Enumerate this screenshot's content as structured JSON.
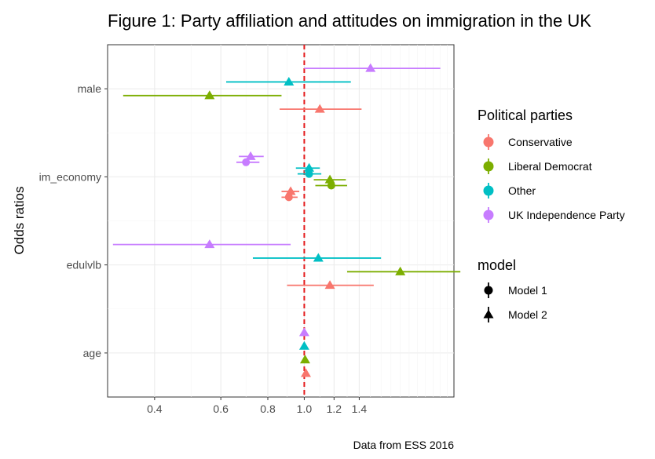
{
  "chart_data": {
    "type": "forest-plot",
    "title": "Figure 1: Party affiliation and attitudes on immigration in the UK",
    "ylabel": "Odds ratios",
    "xlabel": "",
    "caption": "Data from ESS 2016",
    "x_scale": "log",
    "xlim": [
      0.3,
      2.5
    ],
    "x_ticks": [
      0.4,
      0.6,
      0.8,
      1.0,
      1.2,
      1.4
    ],
    "x_tick_labels": [
      "0.4",
      "0.6",
      "0.8",
      "1.0",
      "1.2",
      "1.4"
    ],
    "reference_line": 1.0,
    "reference_color": "#e41a1c",
    "categories": [
      "male",
      "im_economy",
      "edulvlb",
      "age"
    ],
    "parties": [
      {
        "name": "Conservative",
        "color": "#F8766D"
      },
      {
        "name": "Liberal Democrat",
        "color": "#7CAE00"
      },
      {
        "name": "Other",
        "color": "#00BFC4"
      },
      {
        "name": "UK Independence Party",
        "color": "#C77CFF"
      }
    ],
    "models": [
      {
        "name": "Model 1",
        "shape": "circle"
      },
      {
        "name": "Model 2",
        "shape": "triangle"
      }
    ],
    "legend_title_color": "Political parties",
    "legend_title_shape": "model",
    "grid": true,
    "points": [
      {
        "var": "male",
        "party": "UK Independence Party",
        "model": "Model 2",
        "est": 1.5,
        "lo": 1.0,
        "hi": 2.3
      },
      {
        "var": "male",
        "party": "Other",
        "model": "Model 2",
        "est": 0.91,
        "lo": 0.62,
        "hi": 1.33
      },
      {
        "var": "male",
        "party": "Liberal Democrat",
        "model": "Model 2",
        "est": 0.56,
        "lo": 0.33,
        "hi": 0.87
      },
      {
        "var": "male",
        "party": "Conservative",
        "model": "Model 2",
        "est": 1.1,
        "lo": 0.86,
        "hi": 1.42
      },
      {
        "var": "im_economy",
        "party": "UK Independence Party",
        "model": "Model 2",
        "est": 0.72,
        "lo": 0.67,
        "hi": 0.78
      },
      {
        "var": "im_economy",
        "party": "UK Independence Party",
        "model": "Model 1",
        "est": 0.7,
        "lo": 0.66,
        "hi": 0.76
      },
      {
        "var": "im_economy",
        "party": "Other",
        "model": "Model 2",
        "est": 1.03,
        "lo": 0.95,
        "hi": 1.1
      },
      {
        "var": "im_economy",
        "party": "Other",
        "model": "Model 1",
        "est": 1.03,
        "lo": 0.96,
        "hi": 1.11
      },
      {
        "var": "im_economy",
        "party": "Liberal Democrat",
        "model": "Model 2",
        "est": 1.17,
        "lo": 1.06,
        "hi": 1.29
      },
      {
        "var": "im_economy",
        "party": "Liberal Democrat",
        "model": "Model 1",
        "est": 1.18,
        "lo": 1.07,
        "hi": 1.3
      },
      {
        "var": "im_economy",
        "party": "Conservative",
        "model": "Model 2",
        "est": 0.92,
        "lo": 0.87,
        "hi": 0.97
      },
      {
        "var": "im_economy",
        "party": "Conservative",
        "model": "Model 1",
        "est": 0.91,
        "lo": 0.87,
        "hi": 0.96
      },
      {
        "var": "edulvlb",
        "party": "UK Independence Party",
        "model": "Model 2",
        "est": 0.56,
        "lo": 0.31,
        "hi": 0.92
      },
      {
        "var": "edulvlb",
        "party": "Other",
        "model": "Model 2",
        "est": 1.09,
        "lo": 0.73,
        "hi": 1.6
      },
      {
        "var": "edulvlb",
        "party": "Liberal Democrat",
        "model": "Model 2",
        "est": 1.8,
        "lo": 1.3,
        "hi": 2.6
      },
      {
        "var": "edulvlb",
        "party": "Conservative",
        "model": "Model 2",
        "est": 1.17,
        "lo": 0.9,
        "hi": 1.53
      },
      {
        "var": "age",
        "party": "UK Independence Party",
        "model": "Model 2",
        "est": 1.0,
        "lo": 0.995,
        "hi": 1.005
      },
      {
        "var": "age",
        "party": "Other",
        "model": "Model 2",
        "est": 1.0,
        "lo": 0.995,
        "hi": 1.005
      },
      {
        "var": "age",
        "party": "Liberal Democrat",
        "model": "Model 2",
        "est": 1.005,
        "lo": 1.0,
        "hi": 1.01
      },
      {
        "var": "age",
        "party": "Conservative",
        "model": "Model 2",
        "est": 1.01,
        "lo": 1.005,
        "hi": 1.015
      }
    ]
  }
}
